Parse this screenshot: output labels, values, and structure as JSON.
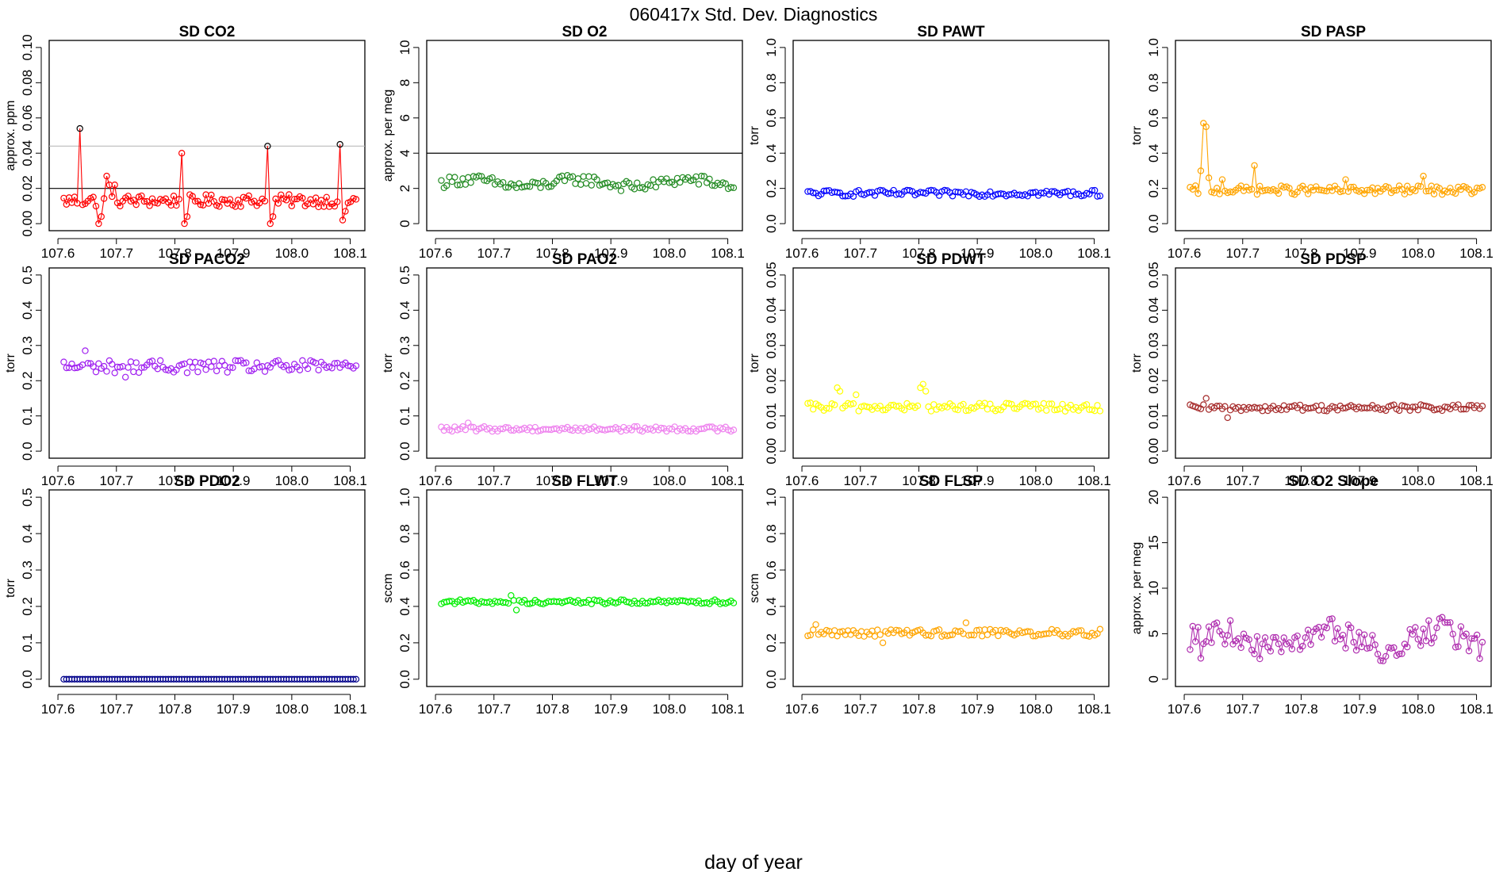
{
  "figure": {
    "title": "060417x   Std. Dev. Diagnostics",
    "xlabel": "day of year"
  },
  "chart_data": [
    {
      "type": "scatter",
      "title": "SD CO2",
      "ylabel": "approx. ppm",
      "color": "#FF0000",
      "ylim": [
        0,
        0.1
      ],
      "yticks": [
        "0.00",
        "0.02",
        "0.04",
        "0.06",
        "0.08",
        "0.10"
      ],
      "xticks": [
        "107.6",
        "107.7",
        "107.8",
        "107.9",
        "108.0",
        "108.1"
      ],
      "xlim": [
        107.6,
        108.1
      ],
      "hlines": [
        {
          "y": 0.02,
          "color": "#000000"
        },
        {
          "y": 0.044,
          "color": "#BBBBBB"
        }
      ],
      "lines": true,
      "outliers_color": "#000000",
      "base": 0.013,
      "noise": 0.0035,
      "spikes": [
        [
          6,
          0.054
        ],
        [
          16,
          0.027
        ],
        [
          17,
          0.022
        ],
        [
          19,
          0.022
        ],
        [
          44,
          0.04
        ],
        [
          76,
          0.044
        ],
        [
          103,
          0.045
        ]
      ],
      "dips": [
        [
          13,
          0.0
        ],
        [
          14,
          0.004
        ],
        [
          45,
          0.0
        ],
        [
          46,
          0.004
        ],
        [
          77,
          0.0
        ],
        [
          78,
          0.004
        ],
        [
          104,
          0.002
        ],
        [
          105,
          0.007
        ]
      ]
    },
    {
      "type": "scatter",
      "title": "SD O2",
      "ylabel": "approx. per meg",
      "color": "#228B22",
      "ylim": [
        0,
        10
      ],
      "yticks": [
        "0",
        "2",
        "4",
        "6",
        "8",
        "10"
      ],
      "xticks": [
        "107.6",
        "107.7",
        "107.8",
        "107.9",
        "108.0",
        "108.1"
      ],
      "xlim": [
        107.6,
        108.1
      ],
      "hlines": [
        {
          "y": 4,
          "color": "#000000"
        }
      ],
      "lines": false,
      "base": 2.3,
      "noise": 0.3,
      "wave": 0.2,
      "spikes": [],
      "dips": []
    },
    {
      "type": "scatter",
      "title": "SD PAWT",
      "ylabel": "torr",
      "color": "#0000FF",
      "ylim": [
        0,
        1
      ],
      "yticks": [
        "0.0",
        "0.2",
        "0.4",
        "0.6",
        "0.8",
        "1.0"
      ],
      "xticks": [
        "107.6",
        "107.7",
        "107.8",
        "107.9",
        "108.0",
        "108.1"
      ],
      "xlim": [
        107.6,
        108.1
      ],
      "hlines": [],
      "lines": false,
      "base": 0.172,
      "noise": 0.018,
      "spikes": [],
      "dips": []
    },
    {
      "type": "scatter",
      "title": "SD PASP",
      "ylabel": "torr",
      "color": "#FFA500",
      "ylim": [
        0,
        1
      ],
      "yticks": [
        "0.0",
        "0.2",
        "0.4",
        "0.6",
        "0.8",
        "1.0"
      ],
      "xticks": [
        "107.6",
        "107.7",
        "107.8",
        "107.9",
        "108.0",
        "108.1"
      ],
      "xlim": [
        107.6,
        108.1
      ],
      "hlines": [],
      "lines": true,
      "base": 0.19,
      "noise": 0.025,
      "spikes": [
        [
          4,
          0.3
        ],
        [
          5,
          0.57
        ],
        [
          6,
          0.55
        ],
        [
          7,
          0.26
        ],
        [
          12,
          0.25
        ],
        [
          24,
          0.33
        ],
        [
          58,
          0.25
        ],
        [
          87,
          0.27
        ]
      ],
      "dips": []
    },
    {
      "type": "scatter",
      "title": "SD PACO2",
      "ylabel": "torr",
      "color": "#A020F0",
      "ylim": [
        0,
        0.5
      ],
      "yticks": [
        "0.0",
        "0.1",
        "0.2",
        "0.3",
        "0.4",
        "0.5"
      ],
      "xticks": [
        "107.6",
        "107.7",
        "107.8",
        "107.9",
        "108.0",
        "108.1"
      ],
      "xlim": [
        107.6,
        108.1
      ],
      "hlines": [],
      "lines": false,
      "base": 0.24,
      "noise": 0.018,
      "spikes": [
        [
          8,
          0.285
        ]
      ],
      "dips": [
        [
          23,
          0.21
        ]
      ]
    },
    {
      "type": "scatter",
      "title": "SD PAO2",
      "ylabel": "torr",
      "color": "#EE82EE",
      "ylim": [
        0,
        0.5
      ],
      "yticks": [
        "0.0",
        "0.1",
        "0.2",
        "0.3",
        "0.4",
        "0.5"
      ],
      "xticks": [
        "107.6",
        "107.7",
        "107.8",
        "107.9",
        "108.0",
        "108.1"
      ],
      "xlim": [
        107.6,
        108.1
      ],
      "hlines": [],
      "lines": false,
      "base": 0.063,
      "noise": 0.007,
      "spikes": [
        [
          10,
          0.08
        ]
      ],
      "dips": []
    },
    {
      "type": "scatter",
      "title": "SD PDWT",
      "ylabel": "torr",
      "color": "#FFFF00",
      "ylim": [
        0,
        0.05
      ],
      "yticks": [
        "0.00",
        "0.01",
        "0.02",
        "0.03",
        "0.04",
        "0.05"
      ],
      "xticks": [
        "107.6",
        "107.7",
        "107.8",
        "107.9",
        "108.0",
        "108.1"
      ],
      "xlim": [
        107.6,
        108.1
      ],
      "hlines": [],
      "lines": false,
      "base": 0.0125,
      "noise": 0.0012,
      "spikes": [
        [
          11,
          0.018
        ],
        [
          12,
          0.017
        ],
        [
          18,
          0.016
        ],
        [
          42,
          0.018
        ],
        [
          43,
          0.019
        ],
        [
          44,
          0.017
        ]
      ],
      "dips": []
    },
    {
      "type": "scatter",
      "title": "SD PDSP",
      "ylabel": "torr",
      "color": "#A52A2A",
      "ylim": [
        0,
        0.05
      ],
      "yticks": [
        "0.00",
        "0.01",
        "0.02",
        "0.03",
        "0.04",
        "0.05"
      ],
      "xticks": [
        "107.6",
        "107.7",
        "107.8",
        "107.9",
        "108.0",
        "108.1"
      ],
      "xlim": [
        107.6,
        108.1
      ],
      "hlines": [],
      "lines": false,
      "base": 0.0123,
      "noise": 0.0009,
      "spikes": [
        [
          6,
          0.015
        ]
      ],
      "dips": [
        [
          14,
          0.0095
        ]
      ]
    },
    {
      "type": "scatter",
      "title": "SD PDO2",
      "ylabel": "torr",
      "color": "#00008B",
      "ylim": [
        0,
        0.5
      ],
      "yticks": [
        "0.0",
        "0.1",
        "0.2",
        "0.3",
        "0.4",
        "0.5"
      ],
      "xticks": [
        "107.6",
        "107.7",
        "107.8",
        "107.9",
        "108.0",
        "108.1"
      ],
      "xlim": [
        107.6,
        108.1
      ],
      "hlines": [],
      "lines": false,
      "base": 0.0,
      "noise": 0.0,
      "spikes": [],
      "dips": []
    },
    {
      "type": "scatter",
      "title": "SD FLWT",
      "ylabel": "sccm",
      "color": "#00EE00",
      "ylim": [
        0,
        1
      ],
      "yticks": [
        "0.0",
        "0.2",
        "0.4",
        "0.6",
        "0.8",
        "1.0"
      ],
      "xticks": [
        "107.6",
        "107.7",
        "107.8",
        "107.9",
        "108.0",
        "108.1"
      ],
      "xlim": [
        107.6,
        108.1
      ],
      "hlines": [],
      "lines": false,
      "base": 0.425,
      "noise": 0.012,
      "spikes": [
        [
          26,
          0.46
        ]
      ],
      "dips": [
        [
          28,
          0.38
        ]
      ]
    },
    {
      "type": "scatter",
      "title": "SD FLSP",
      "ylabel": "sccm",
      "color": "#FFA500",
      "ylim": [
        0,
        1
      ],
      "yticks": [
        "0.0",
        "0.2",
        "0.4",
        "0.6",
        "0.8",
        "1.0"
      ],
      "xticks": [
        "107.6",
        "107.7",
        "107.8",
        "107.9",
        "108.0",
        "108.1"
      ],
      "xlim": [
        107.6,
        108.1
      ],
      "hlines": [],
      "lines": false,
      "base": 0.255,
      "noise": 0.02,
      "spikes": [
        [
          3,
          0.3
        ],
        [
          59,
          0.31
        ]
      ],
      "dips": [
        [
          28,
          0.2
        ]
      ]
    },
    {
      "type": "scatter",
      "title": "SD O2 Slope",
      "ylabel": "approx. per meg",
      "color": "#B030B0",
      "ylim": [
        0,
        20
      ],
      "yticks": [
        "0",
        "5",
        "10",
        "15",
        "20"
      ],
      "xticks": [
        "107.6",
        "107.7",
        "107.8",
        "107.9",
        "108.0",
        "108.1"
      ],
      "xlim": [
        107.6,
        108.1
      ],
      "hlines": [],
      "lines": true,
      "base": 4.3,
      "noise": 1.4,
      "wave": 1.0,
      "spikes": [
        [
          94,
          6.8
        ]
      ],
      "dips": [
        [
          4,
          2.3
        ]
      ]
    }
  ]
}
